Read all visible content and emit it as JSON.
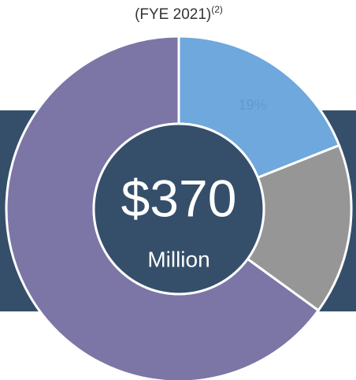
{
  "chart_data": {
    "type": "donut",
    "title": "(FYE 2021)",
    "title_sup": "(2)",
    "center_value": "$370",
    "center_label": "Million",
    "categories": [
      null,
      null,
      null
    ],
    "values": [
      19,
      16,
      65
    ],
    "value_labels": [
      "19%",
      null,
      null
    ],
    "colors": [
      "#6fa8dc",
      "#969696",
      "#7b76a6"
    ]
  }
}
